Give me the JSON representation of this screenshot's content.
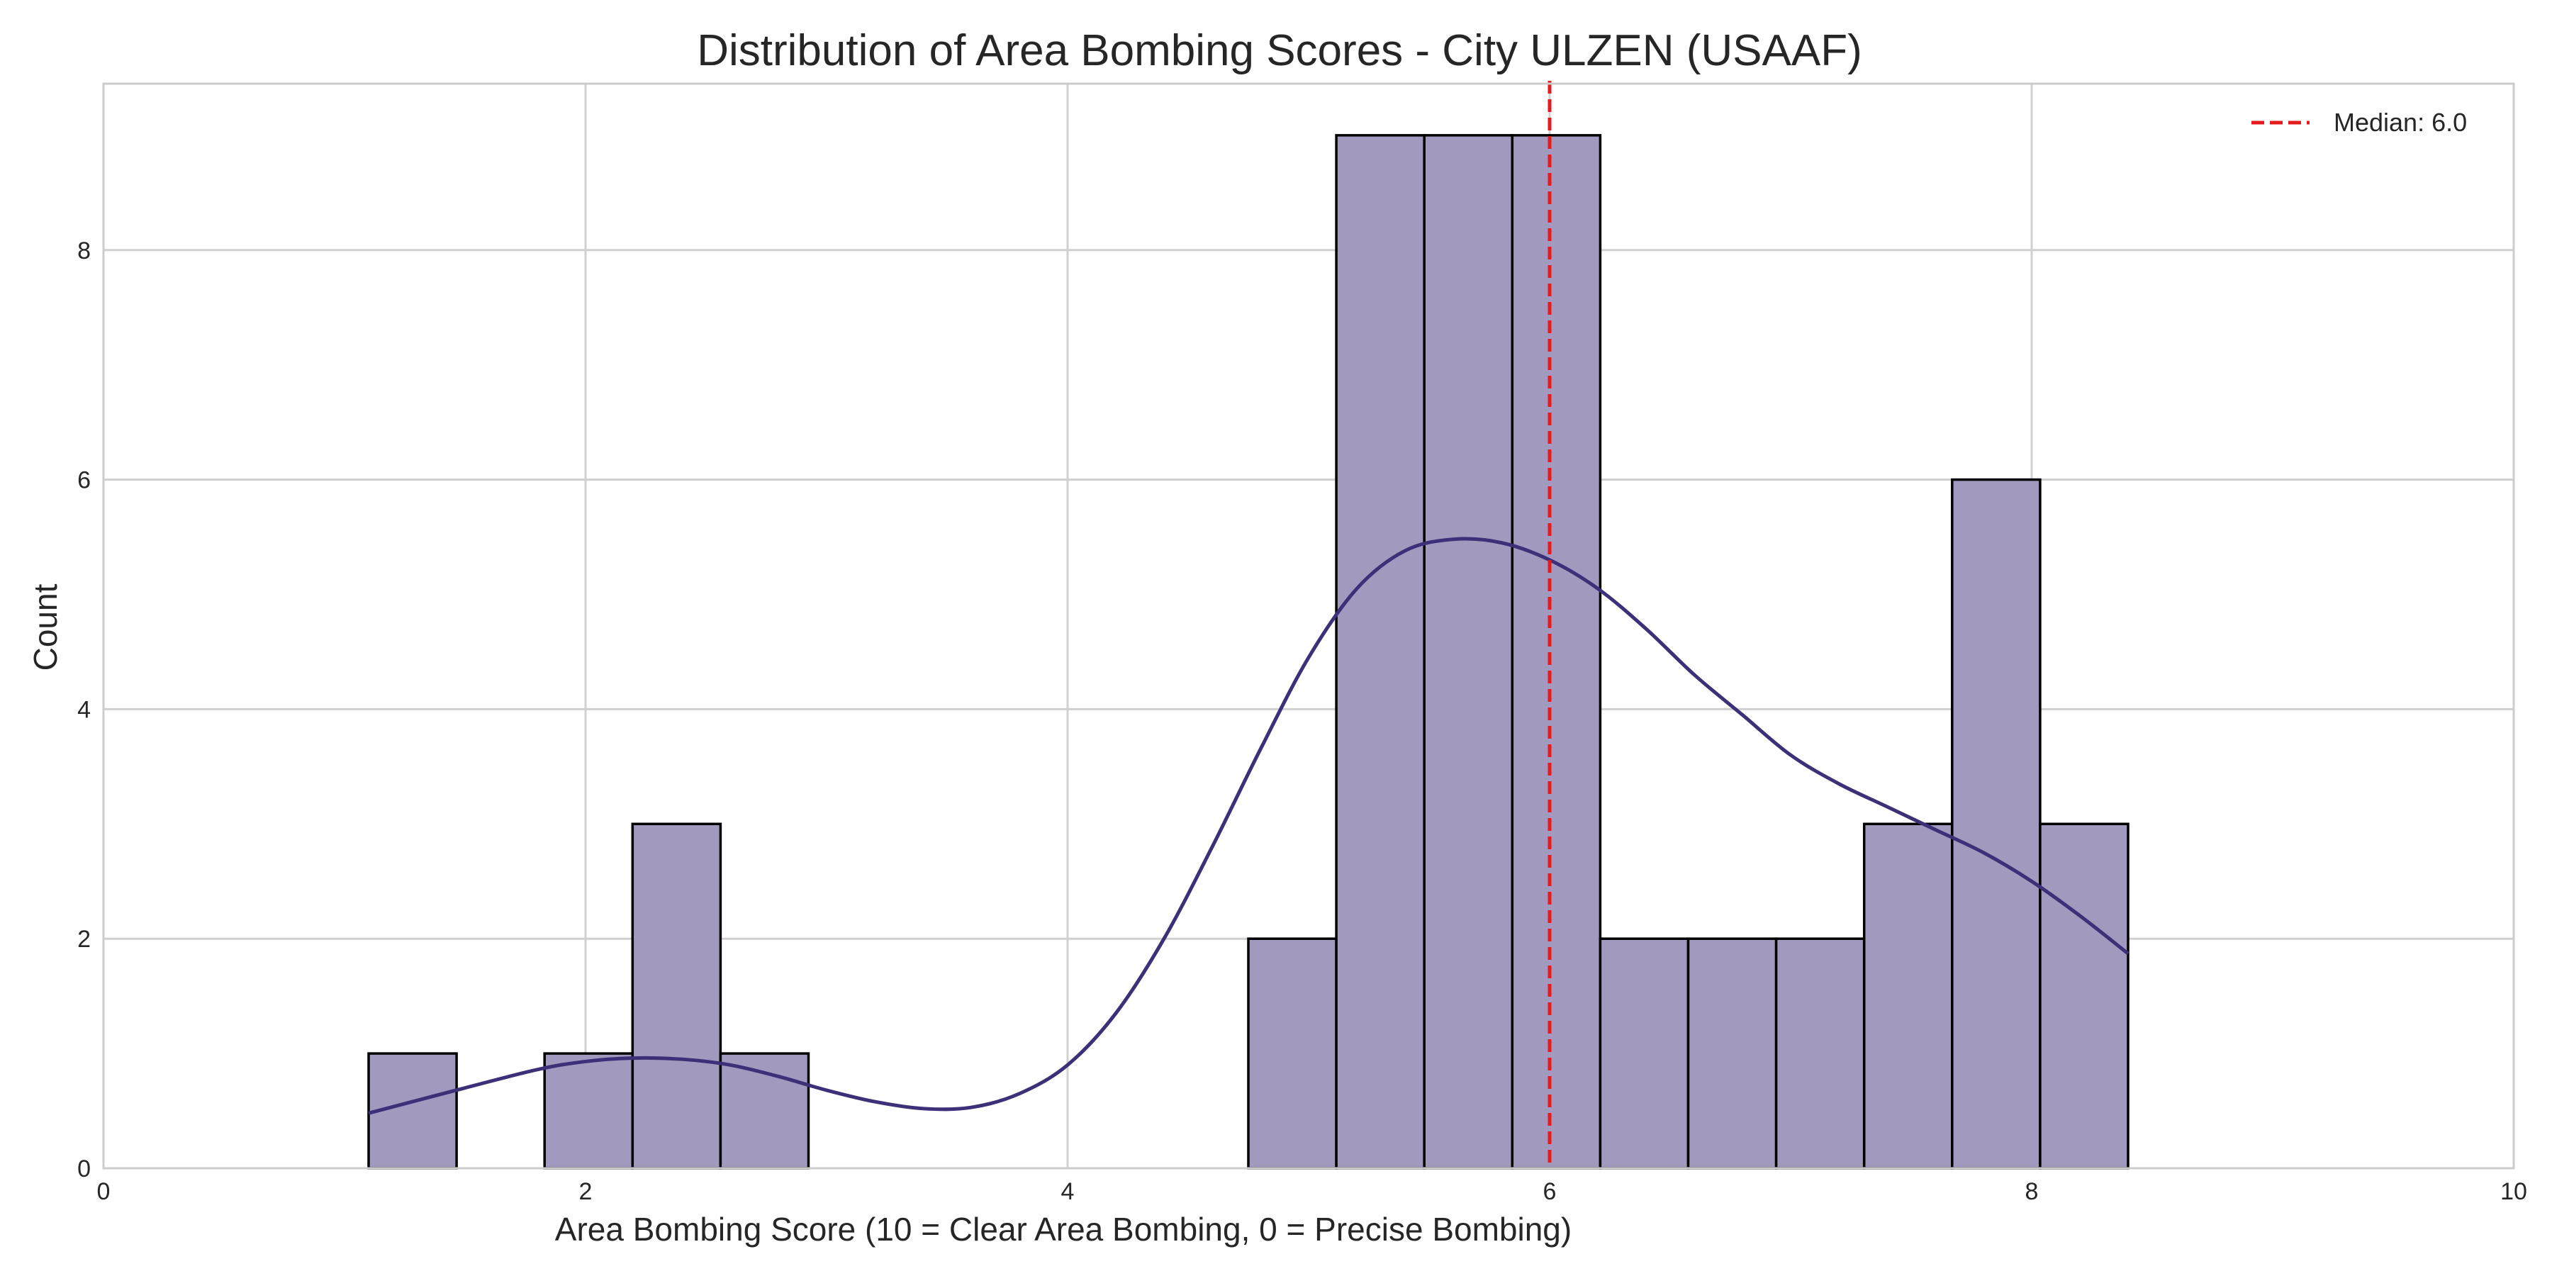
{
  "chart_data": {
    "type": "bar",
    "title": "Distribution of Area Bombing Scores - City ULZEN (USAAF)",
    "xlabel": "Area Bombing Score (10 = Clear Area Bombing, 0 = Precise Bombing)",
    "ylabel": "Count",
    "xlim": [
      0,
      10
    ],
    "ylim": [
      0,
      9.45
    ],
    "xticks": [
      0,
      2,
      4,
      6,
      8,
      10
    ],
    "yticks": [
      0,
      2,
      4,
      6,
      8
    ],
    "grid": true,
    "legend_position": "top-right",
    "bins": [
      {
        "x0": 1.1,
        "x1": 1.465,
        "count": 1
      },
      {
        "x0": 1.465,
        "x1": 1.83,
        "count": 0
      },
      {
        "x0": 1.83,
        "x1": 2.195,
        "count": 1
      },
      {
        "x0": 2.195,
        "x1": 2.56,
        "count": 3
      },
      {
        "x0": 2.56,
        "x1": 2.925,
        "count": 1
      },
      {
        "x0": 2.925,
        "x1": 3.29,
        "count": 0
      },
      {
        "x0": 3.29,
        "x1": 3.655,
        "count": 0
      },
      {
        "x0": 3.655,
        "x1": 4.02,
        "count": 0
      },
      {
        "x0": 4.02,
        "x1": 4.385,
        "count": 0
      },
      {
        "x0": 4.385,
        "x1": 4.75,
        "count": 0
      },
      {
        "x0": 4.75,
        "x1": 5.115,
        "count": 2
      },
      {
        "x0": 5.115,
        "x1": 5.48,
        "count": 9
      },
      {
        "x0": 5.48,
        "x1": 5.845,
        "count": 9
      },
      {
        "x0": 5.845,
        "x1": 6.21,
        "count": 9
      },
      {
        "x0": 6.21,
        "x1": 6.575,
        "count": 2
      },
      {
        "x0": 6.575,
        "x1": 6.94,
        "count": 2
      },
      {
        "x0": 6.94,
        "x1": 7.305,
        "count": 2
      },
      {
        "x0": 7.305,
        "x1": 7.67,
        "count": 3
      },
      {
        "x0": 7.67,
        "x1": 8.035,
        "count": 6
      },
      {
        "x0": 8.035,
        "x1": 8.4,
        "count": 3
      }
    ],
    "kde": {
      "x": [
        1.1,
        1.5,
        1.8,
        2.0,
        2.2,
        2.4,
        2.6,
        2.8,
        3.0,
        3.2,
        3.4,
        3.6,
        3.8,
        4.0,
        4.2,
        4.4,
        4.6,
        4.8,
        5.0,
        5.2,
        5.4,
        5.6,
        5.8,
        6.0,
        6.2,
        6.4,
        6.6,
        6.8,
        7.0,
        7.2,
        7.4,
        7.6,
        7.8,
        8.0,
        8.2,
        8.4
      ],
      "y": [
        0.48,
        0.7,
        0.86,
        0.93,
        0.96,
        0.95,
        0.9,
        0.8,
        0.68,
        0.58,
        0.52,
        0.53,
        0.65,
        0.9,
        1.35,
        2.0,
        2.8,
        3.65,
        4.45,
        5.05,
        5.38,
        5.48,
        5.45,
        5.3,
        5.05,
        4.7,
        4.3,
        3.95,
        3.6,
        3.35,
        3.15,
        2.95,
        2.75,
        2.5,
        2.2,
        1.87
      ]
    },
    "median": {
      "value": 6.0,
      "label": "Median: 6.0"
    },
    "colors": {
      "bar_fill": "#a299be",
      "bar_edge": "#000000",
      "kde_line": "#3d3078",
      "median_line": "#e41a1c",
      "grid": "#d0d0d0",
      "axes_edge": "#cccccc"
    }
  }
}
